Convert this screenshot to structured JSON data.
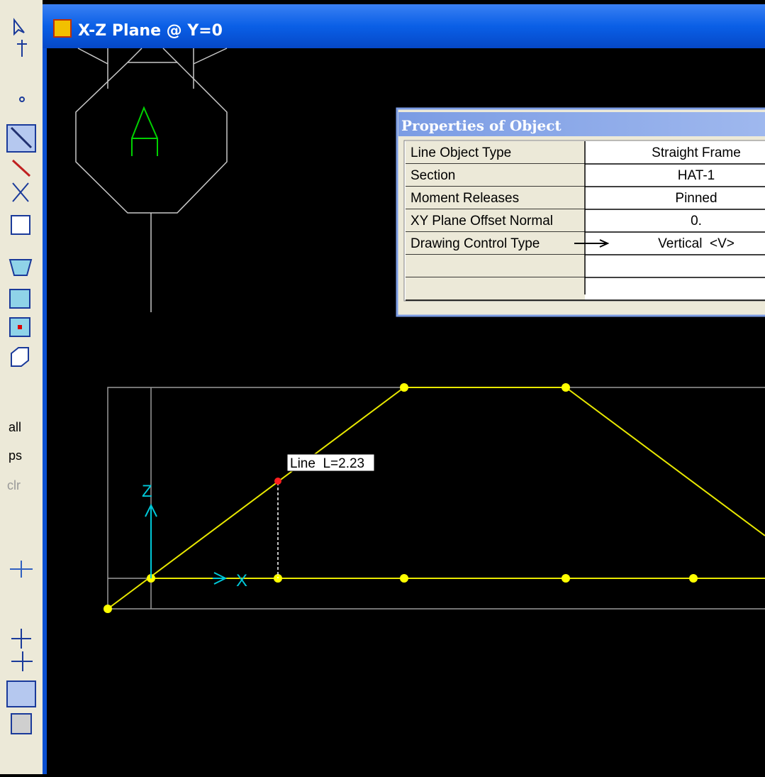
{
  "window": {
    "title": "X-Z Plane @ Y=0"
  },
  "toolbar": {
    "buttons": [
      "all",
      "ps",
      "clr"
    ]
  },
  "properties": {
    "title": "Properties of Object",
    "rows": [
      [
        "Line Object Type",
        "Straight Frame"
      ],
      [
        "Section",
        "HAT-1"
      ],
      [
        "Moment Releases",
        "Pinned"
      ],
      [
        "XY Plane Offset Normal",
        "0."
      ],
      [
        "Drawing Control Type",
        "Vertical  <V>"
      ]
    ]
  },
  "canvas": {
    "label": "A",
    "tooltip": "Line  L=2.23",
    "axis_z": "Z",
    "axis_x": "X"
  }
}
